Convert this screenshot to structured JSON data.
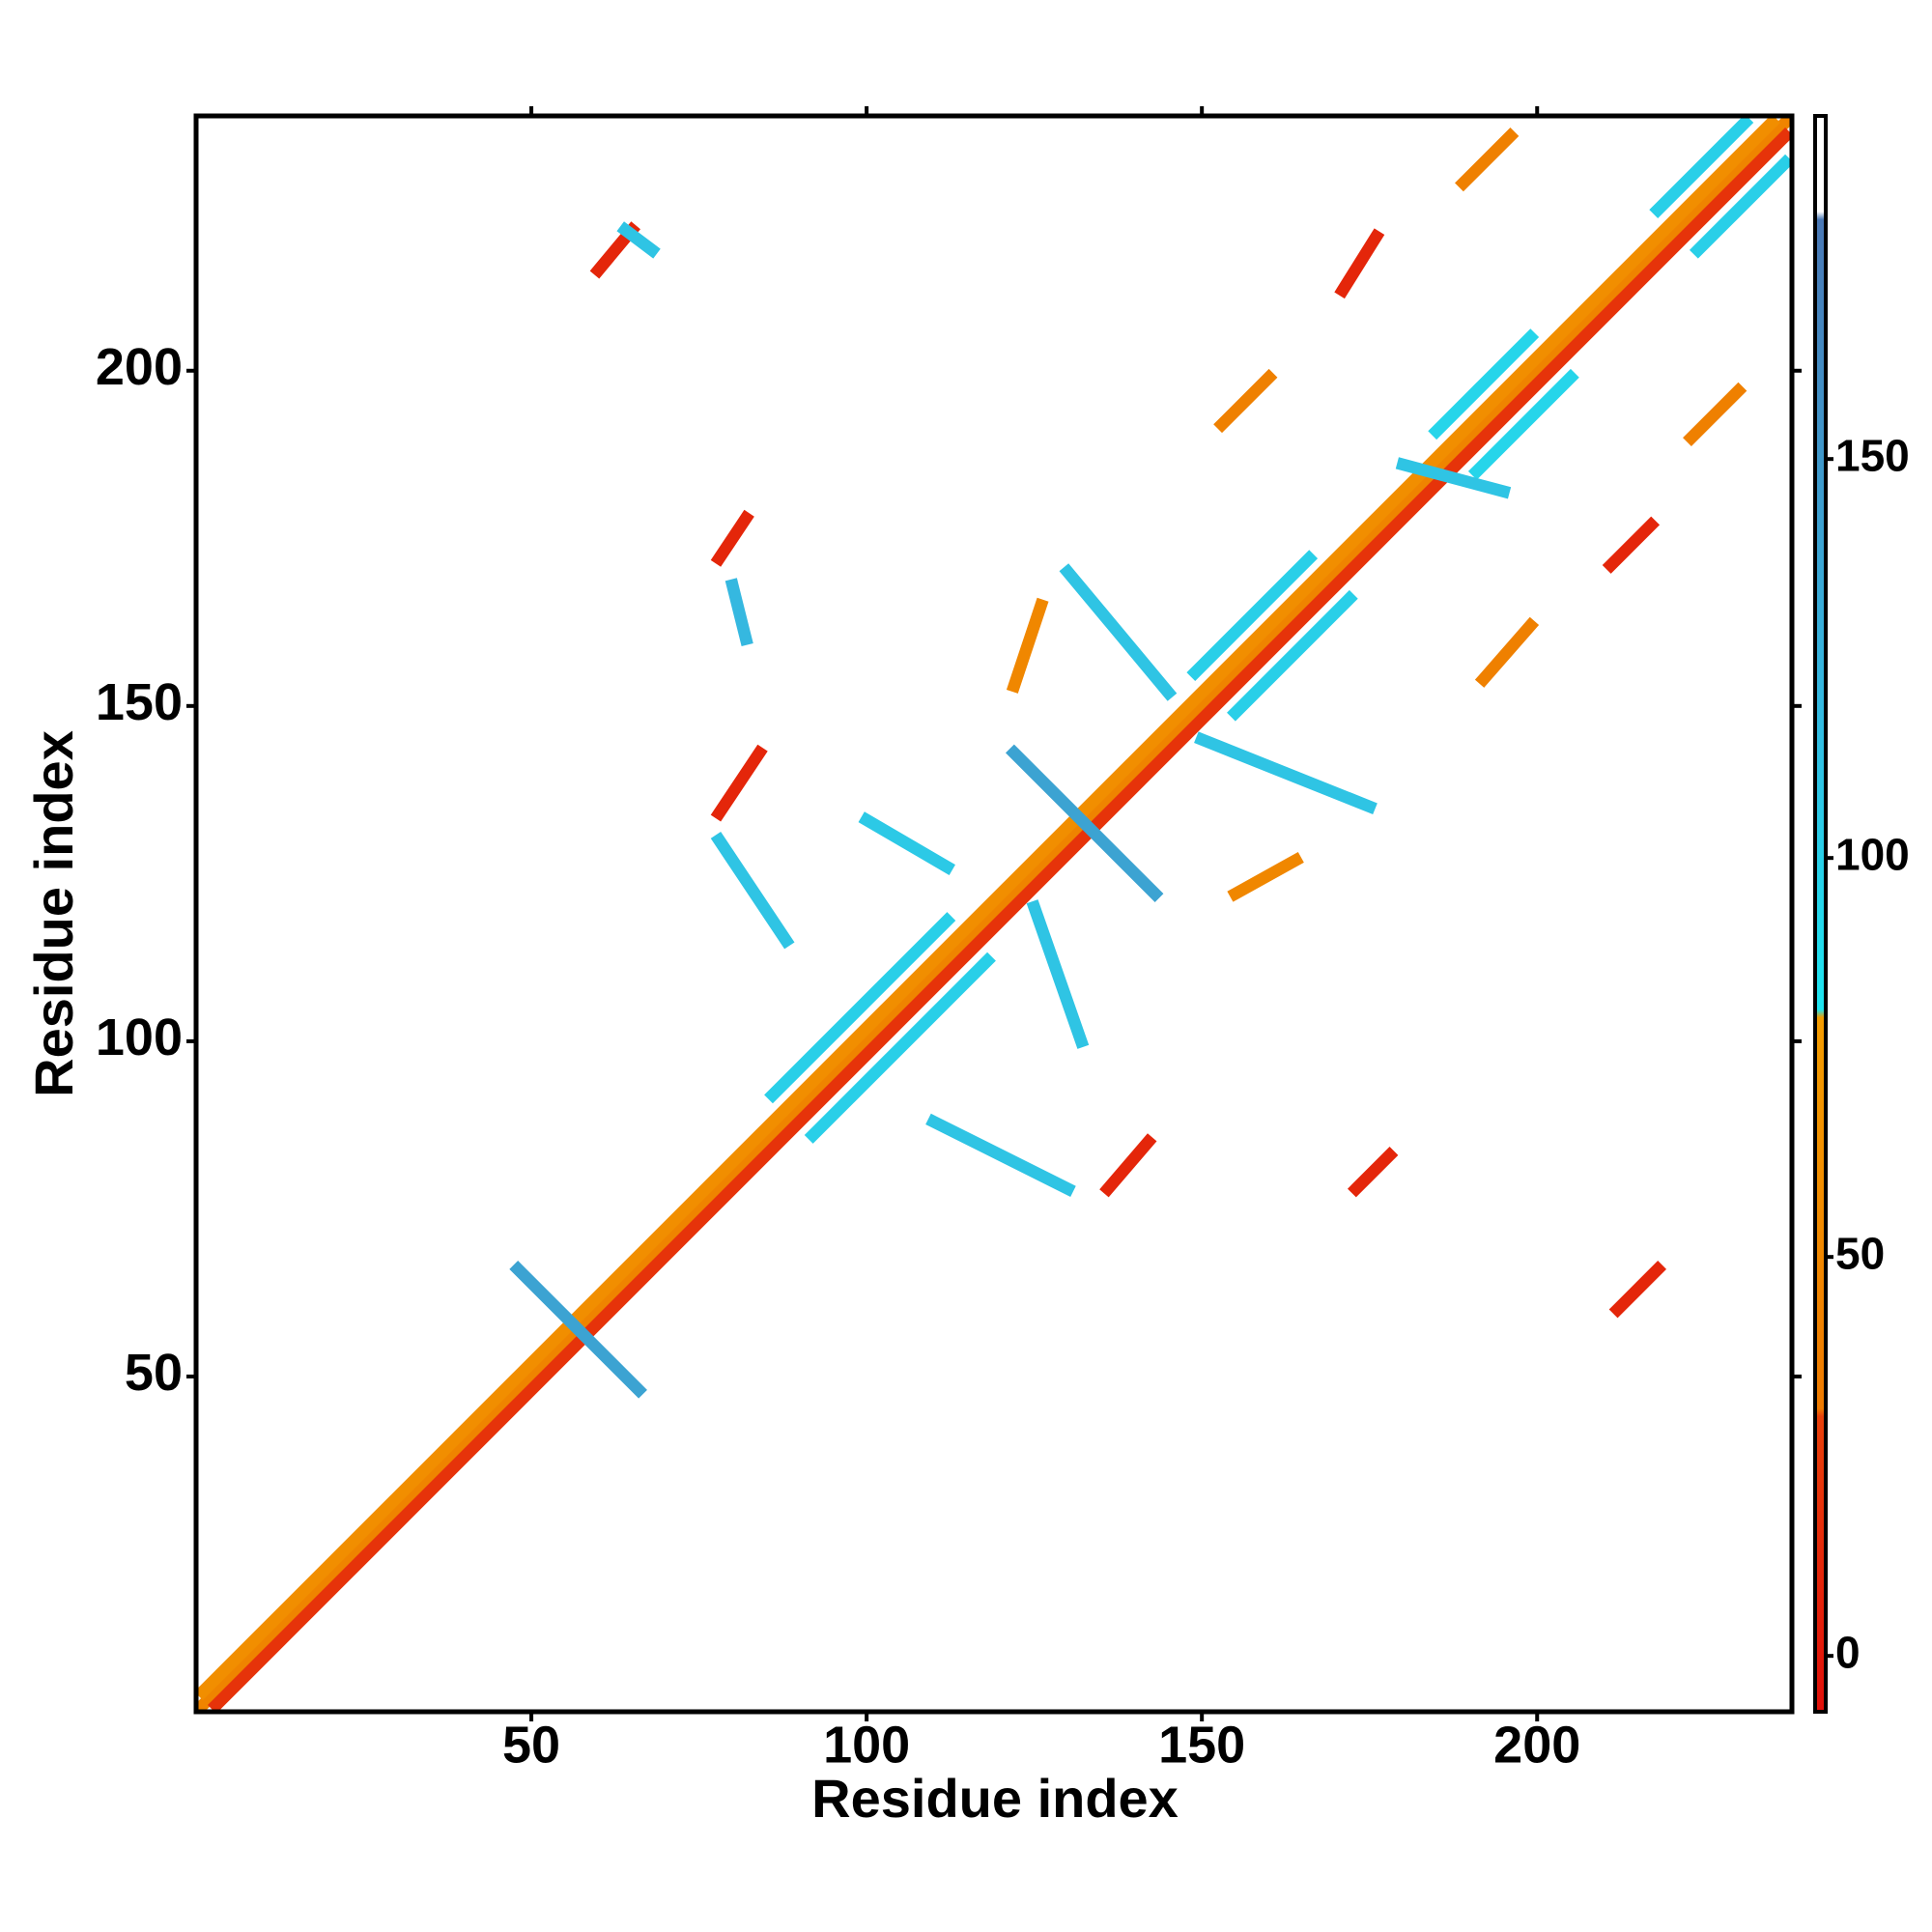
{
  "chart_data": {
    "type": "heatmap",
    "xlabel": "Residue index",
    "ylabel": "Residue index",
    "xlim": [
      0,
      238
    ],
    "ylim": [
      0,
      238
    ],
    "xticks": [
      50,
      100,
      150,
      200
    ],
    "yticks": [
      50,
      100,
      150,
      200
    ],
    "colorbar": {
      "lim": [
        -7,
        193
      ],
      "ticks": [
        0,
        50,
        100,
        150
      ],
      "stops": [
        {
          "value": -7,
          "color": "#e0100a"
        },
        {
          "value": 30,
          "color": "#e8400a"
        },
        {
          "value": 31,
          "color": "#ee7a00"
        },
        {
          "value": 80,
          "color": "#f39c00"
        },
        {
          "value": 81,
          "color": "#1ee5f0"
        },
        {
          "value": 120,
          "color": "#35b8e0"
        },
        {
          "value": 180,
          "color": "#4a78b5"
        },
        {
          "value": 181,
          "color": "#ffffff"
        },
        {
          "value": 193,
          "color": "#ffffff"
        }
      ]
    },
    "streaks": [
      {
        "x": [
          1,
          237
        ],
        "y": [
          1,
          237
        ],
        "value": 45
      },
      {
        "x": [
          3,
          237
        ],
        "y": [
          1,
          235
        ],
        "value": 20
      },
      {
        "x": [
          1,
          235
        ],
        "y": [
          3,
          237
        ],
        "value": 60
      },
      {
        "x": [
          92,
          118
        ],
        "y": [
          86,
          112
        ],
        "value": 100
      },
      {
        "x": [
          86,
          112
        ],
        "y": [
          92,
          118
        ],
        "value": 100
      },
      {
        "x": [
          155,
          172
        ],
        "y": [
          149,
          166
        ],
        "value": 100
      },
      {
        "x": [
          149,
          166
        ],
        "y": [
          155,
          172
        ],
        "value": 100
      },
      {
        "x": [
          191,
          205
        ],
        "y": [
          185,
          199
        ],
        "value": 95
      },
      {
        "x": [
          185,
          199
        ],
        "y": [
          191,
          205
        ],
        "value": 95
      },
      {
        "x": [
          224,
          237
        ],
        "y": [
          218,
          231
        ],
        "value": 100
      },
      {
        "x": [
          218,
          231
        ],
        "y": [
          224,
          237
        ],
        "value": 100
      },
      {
        "x": [
          48,
          66
        ],
        "y": [
          66,
          48
        ],
        "value": 140
      },
      {
        "x": [
          122,
          143
        ],
        "y": [
          143,
          122
        ],
        "value": 140
      },
      {
        "x": [
          60,
          65
        ],
        "y": [
          215,
          221
        ],
        "value": 10
      },
      {
        "x": [
          64,
          68
        ],
        "y": [
          221,
          218
        ],
        "value": 110
      },
      {
        "x": [
          78,
          82
        ],
        "y": [
          172,
          178
        ],
        "value": 10
      },
      {
        "x": [
          78,
          84
        ],
        "y": [
          134,
          143
        ],
        "value": 10
      },
      {
        "x": [
          136,
          142
        ],
        "y": [
          78,
          85
        ],
        "value": 10
      },
      {
        "x": [
          173,
          178
        ],
        "y": [
          78,
          83
        ],
        "value": 10
      },
      {
        "x": [
          171,
          176
        ],
        "y": [
          212,
          220
        ],
        "value": 10
      },
      {
        "x": [
          212,
          218
        ],
        "y": [
          60,
          66
        ],
        "value": 10
      },
      {
        "x": [
          211,
          217
        ],
        "y": [
          171,
          177
        ],
        "value": 10
      },
      {
        "x": [
          155,
          164
        ],
        "y": [
          122,
          127
        ],
        "value": 50
      },
      {
        "x": [
          122,
          126
        ],
        "y": [
          153,
          165
        ],
        "value": 50
      },
      {
        "x": [
          153,
          160
        ],
        "y": [
          192,
          199
        ],
        "value": 40
      },
      {
        "x": [
          192,
          199
        ],
        "y": [
          154,
          162
        ],
        "value": 40
      },
      {
        "x": [
          189,
          196
        ],
        "y": [
          228,
          235
        ],
        "value": 40
      },
      {
        "x": [
          223,
          230
        ],
        "y": [
          190,
          197
        ],
        "value": 40
      },
      {
        "x": [
          110,
          130
        ],
        "y": [
          88,
          78
        ],
        "value": 110
      },
      {
        "x": [
          125,
          132
        ],
        "y": [
          120,
          100
        ],
        "value": 110
      },
      {
        "x": [
          78,
          88
        ],
        "y": [
          130,
          115
        ],
        "value": 110
      },
      {
        "x": [
          145,
          130
        ],
        "y": [
          152,
          170
        ],
        "value": 110
      },
      {
        "x": [
          150,
          175
        ],
        "y": [
          145,
          135
        ],
        "value": 110
      },
      {
        "x": [
          180,
          195
        ],
        "y": [
          186,
          182
        ],
        "value": 110
      },
      {
        "x": [
          100,
          112
        ],
        "y": [
          133,
          126
        ],
        "value": 105
      },
      {
        "x": [
          80,
          82
        ],
        "y": [
          168,
          160
        ],
        "value": 120
      }
    ]
  }
}
